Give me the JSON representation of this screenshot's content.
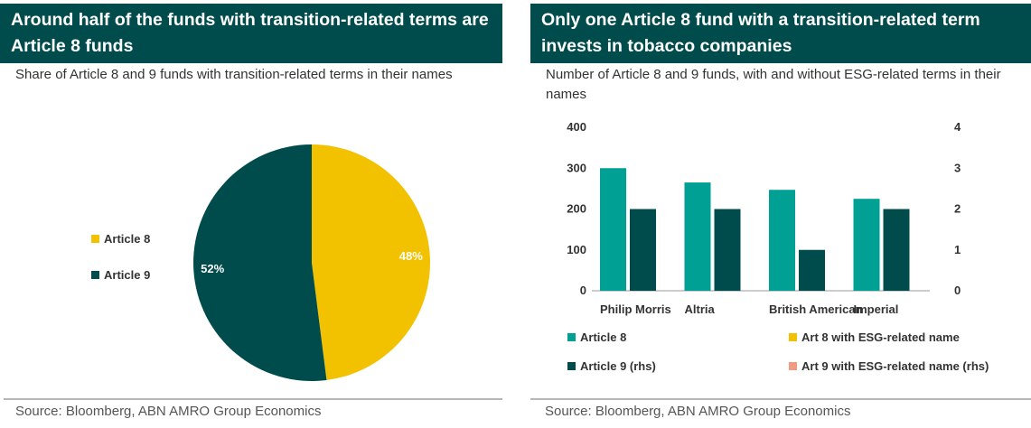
{
  "left": {
    "title": "Around half of the funds with transition-related terms are Article 8 funds",
    "subtitle": "Share of Article 8 and 9 funds with transition-related terms in their names",
    "source": "Source: Bloomberg, ABN AMRO Group Economics",
    "legend": [
      {
        "label": "Article 8",
        "color": "#f2c100"
      },
      {
        "label": "Article 9",
        "color": "#004c4c"
      }
    ]
  },
  "right": {
    "title": "Only one Article 8 fund with a transition-related term invests in tobacco companies",
    "subtitle": "Number of Article 8 and 9 funds, with and without ESG-related terms in their names",
    "source": "Source: Bloomberg, ABN AMRO Group Economics",
    "legend": [
      {
        "label": "Article 8",
        "color": "#00a194"
      },
      {
        "label": "Art 8 with ESG-related name",
        "color": "#f2c100"
      },
      {
        "label": "Article 9 (rhs)",
        "color": "#004c4c"
      },
      {
        "label": "Art 9 with ESG-related name (rhs)",
        "color": "#f09b82"
      }
    ]
  },
  "chart_data": [
    {
      "type": "pie",
      "title": "Around half of the funds with transition-related terms are Article 8 funds",
      "subtitle": "Share of Article 8 and 9 funds with transition-related terms in their names",
      "slices": [
        {
          "name": "Article 8",
          "value": 48,
          "label": "48%",
          "color": "#f2c100"
        },
        {
          "name": "Article 9",
          "value": 52,
          "label": "52%",
          "color": "#004c4c"
        }
      ],
      "legend_position": "left"
    },
    {
      "type": "bar",
      "title": "Only one Article 8 fund with a transition-related term invests in tobacco companies",
      "subtitle": "Number of Article 8 and 9 funds, with and without ESG-related terms in their names",
      "categories": [
        "Philip Morris",
        "Altria",
        "British American",
        "Imperial"
      ],
      "series": [
        {
          "name": "Article 8",
          "axis": "left",
          "color": "#00a194",
          "values": [
            300,
            265,
            247,
            225
          ]
        },
        {
          "name": "Article 9 (rhs)",
          "axis": "right",
          "color": "#004c4c",
          "values": [
            2,
            2,
            1,
            2
          ]
        },
        {
          "name": "Art 8 with ESG-related name",
          "axis": "left",
          "color": "#f2c100",
          "values": [
            0,
            0,
            0,
            0
          ]
        },
        {
          "name": "Art 9 with ESG-related name (rhs)",
          "axis": "right",
          "color": "#f09b82",
          "values": [
            0,
            0,
            0,
            0
          ]
        }
      ],
      "ylim": [
        0,
        400
      ],
      "yticks": [
        "0",
        "100",
        "200",
        "300",
        "400"
      ],
      "y2lim": [
        0,
        4
      ],
      "y2ticks": [
        "0",
        "1",
        "2",
        "3",
        "4"
      ],
      "grid": false,
      "legend_position": "bottom"
    }
  ]
}
